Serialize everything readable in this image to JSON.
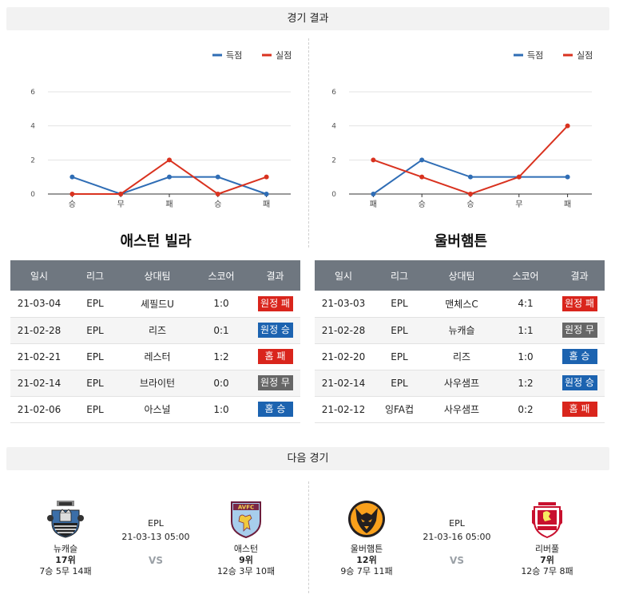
{
  "sections": {
    "results_title": "경기 결과",
    "next_title": "다음 경기"
  },
  "legend": {
    "scored": "득점",
    "conceded": "실점"
  },
  "colors": {
    "scored": "#2f6db5",
    "conceded": "#d9321f",
    "loss": "#d9251c",
    "win": "#1c63b0",
    "draw": "#666666"
  },
  "chart_data": [
    {
      "type": "line",
      "categories": [
        "승",
        "무",
        "패",
        "승",
        "패"
      ],
      "ylim": [
        0,
        6
      ],
      "yticks": [
        0,
        2,
        4,
        6
      ],
      "grid": true,
      "legend_position": "top-right",
      "series": [
        {
          "name": "득점",
          "values": [
            1,
            0,
            1,
            1,
            0
          ]
        },
        {
          "name": "실점",
          "values": [
            0,
            0,
            2,
            0,
            1
          ]
        }
      ]
    },
    {
      "type": "line",
      "categories": [
        "패",
        "승",
        "승",
        "무",
        "패"
      ],
      "ylim": [
        0,
        6
      ],
      "yticks": [
        0,
        2,
        4,
        6
      ],
      "grid": true,
      "legend_position": "top-right",
      "series": [
        {
          "name": "득점",
          "values": [
            0,
            2,
            1,
            1,
            1
          ]
        },
        {
          "name": "실점",
          "values": [
            2,
            1,
            0,
            1,
            4
          ]
        }
      ]
    }
  ],
  "left_team": {
    "name": "애스턴 빌라",
    "headers": [
      "일시",
      "리그",
      "상대팀",
      "스코어",
      "결과"
    ],
    "rows": [
      {
        "date": "21-03-04",
        "league": "EPL",
        "opponent": "셰필드U",
        "score": "1:0",
        "result": "원정 패",
        "kind": "loss"
      },
      {
        "date": "21-02-28",
        "league": "EPL",
        "opponent": "리즈",
        "score": "0:1",
        "result": "원정 승",
        "kind": "win"
      },
      {
        "date": "21-02-21",
        "league": "EPL",
        "opponent": "레스터",
        "score": "1:2",
        "result": "홈 패",
        "kind": "loss"
      },
      {
        "date": "21-02-14",
        "league": "EPL",
        "opponent": "브라이턴",
        "score": "0:0",
        "result": "원정 무",
        "kind": "draw"
      },
      {
        "date": "21-02-06",
        "league": "EPL",
        "opponent": "아스널",
        "score": "1:0",
        "result": "홈 승",
        "kind": "win"
      }
    ]
  },
  "right_team": {
    "name": "울버햄튼",
    "headers": [
      "일시",
      "리그",
      "상대팀",
      "스코어",
      "결과"
    ],
    "rows": [
      {
        "date": "21-03-03",
        "league": "EPL",
        "opponent": "맨체스C",
        "score": "4:1",
        "result": "원정 패",
        "kind": "loss"
      },
      {
        "date": "21-02-28",
        "league": "EPL",
        "opponent": "뉴캐슬",
        "score": "1:1",
        "result": "원정 무",
        "kind": "draw"
      },
      {
        "date": "21-02-20",
        "league": "EPL",
        "opponent": "리즈",
        "score": "1:0",
        "result": "홈 승",
        "kind": "win"
      },
      {
        "date": "21-02-14",
        "league": "EPL",
        "opponent": "사우샘프",
        "score": "1:2",
        "result": "원정 승",
        "kind": "win"
      },
      {
        "date": "21-02-12",
        "league": "잉FA컵",
        "opponent": "사우샘프",
        "score": "0:2",
        "result": "홈 패",
        "kind": "loss"
      }
    ]
  },
  "next_matches": [
    {
      "league": "EPL",
      "datetime": "21-03-13 05:00",
      "vs": "VS",
      "home": {
        "name": "뉴캐슬",
        "rank": "17위",
        "record": "7승 5무 14패",
        "logo": "newcastle-crest-icon"
      },
      "away": {
        "name": "애스턴",
        "rank": "9위",
        "record": "12승 3무 10패",
        "logo": "aston-villa-crest-icon"
      }
    },
    {
      "league": "EPL",
      "datetime": "21-03-16 05:00",
      "vs": "VS",
      "home": {
        "name": "울버햄튼",
        "rank": "12위",
        "record": "9승 7무 11패",
        "logo": "wolves-crest-icon"
      },
      "away": {
        "name": "리버풀",
        "rank": "7위",
        "record": "12승 7무 8패",
        "logo": "liverpool-crest-icon"
      }
    }
  ]
}
